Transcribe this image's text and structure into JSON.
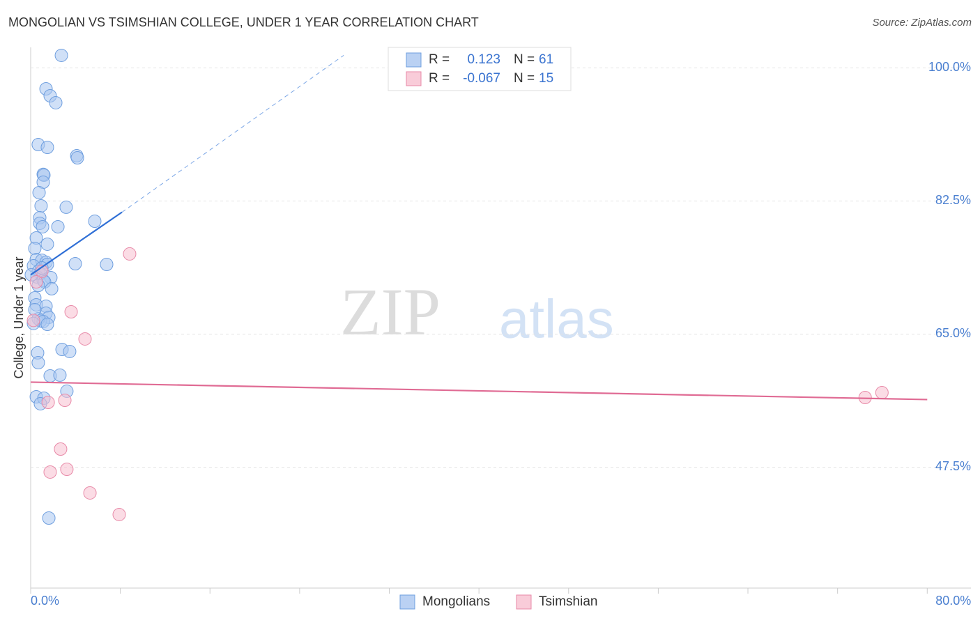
{
  "chart_data": {
    "type": "scatter",
    "title": "MONGOLIAN VS TSIMSHIAN COLLEGE, UNDER 1 YEAR CORRELATION CHART",
    "source": "Source: ZipAtlas.com",
    "y_label": "College, Under 1 year",
    "watermark": [
      "ZIP",
      "atlas"
    ],
    "xlim": [
      0,
      83.9
    ],
    "ylim": [
      31.6,
      102.7
    ],
    "xticks": [
      {
        "value": 0,
        "label": "0.0%"
      },
      {
        "value": 80,
        "label": "80.0%"
      }
    ],
    "xminorticks": [
      8,
      16,
      24,
      32,
      40,
      48,
      56,
      64,
      72
    ],
    "yticks": [
      {
        "value": 47.5,
        "label": "47.5%"
      },
      {
        "value": 65,
        "label": "65.0%"
      },
      {
        "value": 82.5,
        "label": "82.5%"
      },
      {
        "value": 100,
        "label": "100.0%"
      }
    ],
    "grid": true,
    "stat_labels": {
      "r": "R =",
      "n": "N ="
    },
    "series": [
      {
        "name": "Mongolians",
        "color": "#6f9fdf",
        "fill": "#a9c6f0",
        "r": 0.123,
        "n": 61,
        "x": [
          2.74,
          1.37,
          1.74,
          2.24,
          0.68,
          1.49,
          4.11,
          4.17,
          1.12,
          1.18,
          1.12,
          0.75,
          0.93,
          3.17,
          0.81,
          5.72,
          0.81,
          1.06,
          2.43,
          0.5,
          0.37,
          1.49,
          0.5,
          1.0,
          1.37,
          1.49,
          0.25,
          3.98,
          6.78,
          0.68,
          0.87,
          0.56,
          1.8,
          1.12,
          1.24,
          1.87,
          0.37,
          0.5,
          1.37,
          1.37,
          1.62,
          0.87,
          0.68,
          1.12,
          1.49,
          2.8,
          3.48,
          0.62,
          0.68,
          1.74,
          2.61,
          3.23,
          0.5,
          1.18,
          0.87,
          1.62,
          0.37,
          0.25,
          1.0,
          0.68,
          0.06
        ],
        "values": [
          101.65,
          97.25,
          96.33,
          95.42,
          89.92,
          89.55,
          88.45,
          88.18,
          86.0,
          85.9,
          84.97,
          83.6,
          81.86,
          81.68,
          80.3,
          79.84,
          79.57,
          79.11,
          79.11,
          77.64,
          76.27,
          76.82,
          74.8,
          74.71,
          74.44,
          74.16,
          73.98,
          74.25,
          74.16,
          73.25,
          72.97,
          72.51,
          72.42,
          72.05,
          71.87,
          70.96,
          69.76,
          68.85,
          68.66,
          67.75,
          67.2,
          66.74,
          67.01,
          66.65,
          66.28,
          62.98,
          62.71,
          62.53,
          61.24,
          59.5,
          59.6,
          57.49,
          56.75,
          56.57,
          55.84,
          40.81,
          68.2,
          66.4,
          73.7,
          71.4,
          72.8
        ],
        "trend": {
          "x": [
            0,
            8.15
          ],
          "values": [
            72.79,
            81.03
          ]
        },
        "trend_extension": {
          "x": [
            8.15,
            27.93
          ],
          "values": [
            81.03,
            101.65
          ]
        }
      },
      {
        "name": "Tsimshian",
        "color": "#e88aa8",
        "fill": "#f7bfd0",
        "r": -0.067,
        "n": 15,
        "x": [
          8.83,
          3.61,
          4.85,
          1.0,
          0.5,
          3.05,
          1.56,
          2.67,
          1.74,
          3.23,
          5.29,
          7.9,
          74.46,
          75.96,
          0.25
        ],
        "values": [
          75.54,
          67.93,
          64.36,
          73.25,
          71.87,
          56.29,
          56.02,
          49.88,
          46.86,
          47.22,
          44.11,
          41.27,
          56.66,
          57.3,
          66.8
        ],
        "trend": {
          "x": [
            0,
            80
          ],
          "values": [
            58.68,
            56.39
          ]
        }
      }
    ]
  }
}
